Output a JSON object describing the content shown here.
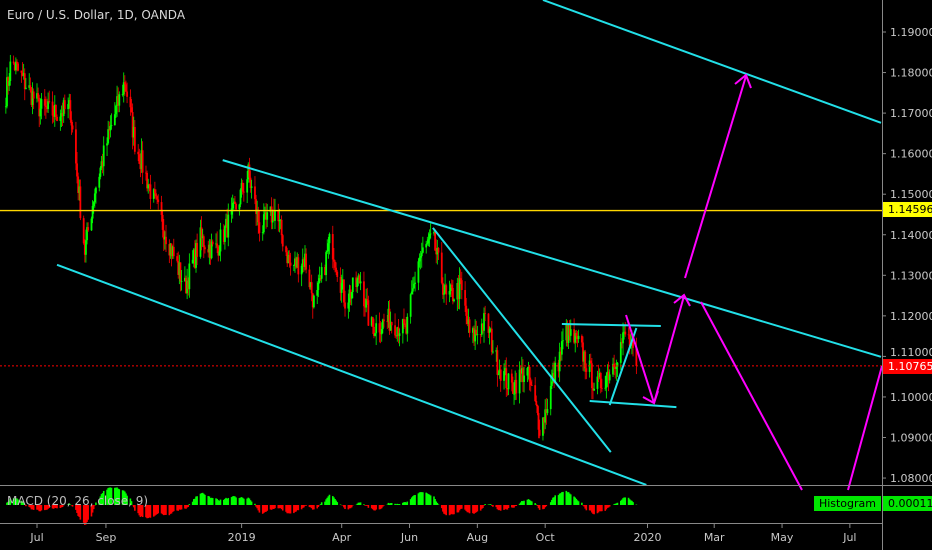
{
  "header": {
    "title": "Euro / U.S. Dollar, 1D, OANDA"
  },
  "macd": {
    "label": "MACD (20, 26, close, 9)",
    "legend_label": "Histogram",
    "value": "0.00011"
  },
  "colors": {
    "up": "#00ff00",
    "down": "#ff0000",
    "channel": "#22e0e8",
    "arrows": "#ff00ff",
    "level": "#ffd700",
    "last_price": "#ff0000",
    "badge_level": "#ffff00",
    "badge_macd": "#00e600"
  },
  "chart_data": {
    "type": "candlestick",
    "symbol": "EURUSD",
    "ylim": [
      1.0765,
      1.1985
    ],
    "y_ticks": [
      "1.19000",
      "1.18000",
      "1.17000",
      "1.16000",
      "1.15000",
      "1.14000",
      "1.13000",
      "1.12000",
      "1.11000",
      "1.10000",
      "1.09000",
      "1.08000"
    ],
    "x_ticks": [
      {
        "label": "Jul",
        "date": "2018-07-01"
      },
      {
        "label": "Sep",
        "date": "2018-09-01"
      },
      {
        "label": "2019",
        "date": "2019-01-01"
      },
      {
        "label": "Apr",
        "date": "2019-04-01"
      },
      {
        "label": "Jun",
        "date": "2019-06-01"
      },
      {
        "label": "Aug",
        "date": "2019-08-01"
      },
      {
        "label": "Oct",
        "date": "2019-10-01"
      },
      {
        "label": "2020",
        "date": "2020-01-01"
      },
      {
        "label": "Mar",
        "date": "2020-03-01"
      },
      {
        "label": "May",
        "date": "2020-05-01"
      },
      {
        "label": "Jul",
        "date": "2020-07-01"
      }
    ],
    "close_path": [
      [
        "2018-06-02",
        1.173
      ],
      [
        "2018-06-08",
        1.183
      ],
      [
        "2018-07-04",
        1.171
      ],
      [
        "2018-07-17",
        1.17
      ],
      [
        "2018-07-31",
        1.171
      ],
      [
        "2018-08-13",
        1.136
      ],
      [
        "2018-08-22",
        1.151
      ],
      [
        "2018-09-05",
        1.166
      ],
      [
        "2018-09-18",
        1.178
      ],
      [
        "2018-09-27",
        1.163
      ],
      [
        "2018-10-11",
        1.151
      ],
      [
        "2018-10-24",
        1.141
      ],
      [
        "2018-11-11",
        1.127
      ],
      [
        "2018-11-25",
        1.139
      ],
      [
        "2018-12-08",
        1.136
      ],
      [
        "2018-12-26",
        1.146
      ],
      [
        "2019-01-07",
        1.155
      ],
      [
        "2019-01-18",
        1.141
      ],
      [
        "2019-01-31",
        1.146
      ],
      [
        "2019-02-14",
        1.132
      ],
      [
        "2019-02-27",
        1.134
      ],
      [
        "2019-03-08",
        1.122
      ],
      [
        "2019-03-22",
        1.139
      ],
      [
        "2019-04-04",
        1.124
      ],
      [
        "2019-04-18",
        1.129
      ],
      [
        "2019-04-27",
        1.117
      ],
      [
        "2019-05-15",
        1.119
      ],
      [
        "2019-05-29",
        1.116
      ],
      [
        "2019-06-09",
        1.134
      ],
      [
        "2019-06-22",
        1.139
      ],
      [
        "2019-07-04",
        1.124
      ],
      [
        "2019-07-17",
        1.127
      ],
      [
        "2019-07-26",
        1.114
      ],
      [
        "2019-08-09",
        1.119
      ],
      [
        "2019-08-18",
        1.109
      ],
      [
        "2019-08-31",
        1.102
      ],
      [
        "2019-09-14",
        1.107
      ],
      [
        "2019-09-27",
        1.092
      ],
      [
        "2019-10-06",
        1.102
      ],
      [
        "2019-10-20",
        1.116
      ],
      [
        "2019-11-02",
        1.112
      ],
      [
        "2019-11-16",
        1.102
      ],
      [
        "2019-11-29",
        1.107
      ],
      [
        "2019-12-13",
        1.116
      ],
      [
        "2019-12-22",
        1.1077
      ]
    ],
    "horizontal_level": {
      "price": 1.14596,
      "label": "1.14596"
    },
    "last_price": {
      "price": 1.10765,
      "label": "1.10765"
    },
    "trendlines": [
      {
        "from": [
          "2018-12-15",
          1.1584
        ],
        "to": [
          "2020-07-29",
          1.1099
        ]
      },
      {
        "from": [
          "2018-07-19",
          1.1326
        ],
        "to": [
          "2019-12-31",
          1.0783
        ]
      },
      {
        "from": [
          "2019-09-29",
          1.1979
        ],
        "to": [
          "2020-07-29",
          1.1676
        ]
      },
      {
        "from": [
          "2019-06-22",
          1.1417
        ],
        "to": [
          "2019-11-29",
          1.0864
        ]
      },
      {
        "from": [
          "2019-10-16",
          1.118
        ],
        "to": [
          "2020-01-13",
          1.1175
        ]
      },
      {
        "from": [
          "2019-11-10",
          1.099
        ],
        "to": [
          "2020-01-27",
          1.0975
        ]
      },
      {
        "from": [
          "2019-11-28",
          1.098
        ],
        "to": [
          "2019-12-22",
          1.117
        ]
      }
    ],
    "grid": false
  }
}
